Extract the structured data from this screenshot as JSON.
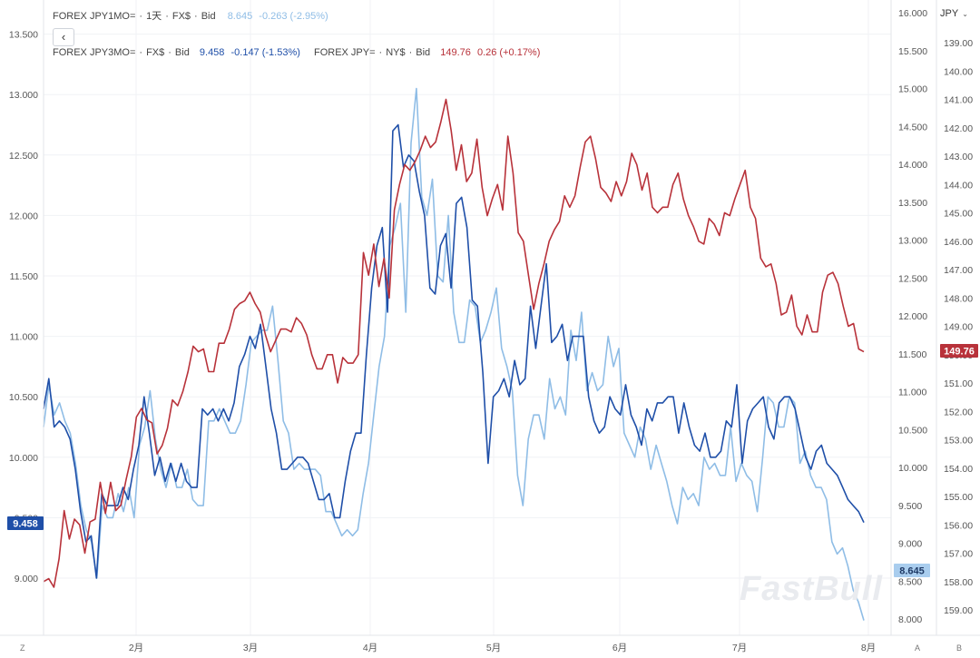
{
  "legend": {
    "line1": {
      "name": "FOREX JPY1MO=",
      "interval": "1天",
      "source": "FX$",
      "side": "Bid",
      "value": "8.645",
      "change": "-0.263 (-2.95%)",
      "color": "#8fbde6"
    },
    "line2": {
      "name": "FOREX JPY3MO=",
      "source": "FX$",
      "side": "Bid",
      "value": "9.458",
      "change": "-0.147 (-1.53%)",
      "color": "#1f4fa8"
    },
    "line3": {
      "name": "FOREX JPY=",
      "source": "NY$",
      "side": "Bid",
      "value": "149.76",
      "change": "0.26 (+0.17%)",
      "color": "#b8323a"
    },
    "dot": "·"
  },
  "currency_select": {
    "value": "JPY"
  },
  "back_button": "‹",
  "watermark": "FastBull",
  "axis_buttons": {
    "left": "Z",
    "auto": "A",
    "right": "B"
  },
  "badges": {
    "left": "9.458",
    "right_top": "8.645",
    "right_price": "149.76"
  },
  "chart_data": {
    "type": "line",
    "x_axis": {
      "months": [
        "2月",
        "3月",
        "4月",
        "5月",
        "6月",
        "7月",
        "8月"
      ]
    },
    "y_left": {
      "ticks": [
        "9.000",
        "9.500",
        "10.000",
        "10.500",
        "11.000",
        "11.500",
        "12.000",
        "12.500",
        "13.000",
        "13.500"
      ],
      "range": [
        8.55,
        13.75
      ]
    },
    "y_mid": {
      "ticks": [
        "8.000",
        "8.500",
        "9.000",
        "9.500",
        "10.000",
        "10.500",
        "11.000",
        "11.500",
        "12.000",
        "12.500",
        "13.000",
        "13.500",
        "14.000",
        "14.500",
        "15.000",
        "15.500",
        "16.000"
      ],
      "range": [
        7.82,
        16.14
      ]
    },
    "y_right": {
      "ticks": [
        "139.00",
        "140.00",
        "141.00",
        "142.00",
        "143.00",
        "144.00",
        "145.00",
        "146.00",
        "147.00",
        "148.00",
        "149.00",
        "150.00",
        "151.00",
        "152.00",
        "153.00",
        "154.00",
        "155.00",
        "156.00",
        "157.00",
        "158.00",
        "159.00"
      ],
      "range": [
        159.9,
        138.1
      ],
      "inverted": true
    },
    "series": [
      {
        "name": "FOREX JPY1MO=",
        "axis": "left",
        "color": "#8fbde6",
        "values": [
          10.25,
          10.6,
          10.35,
          10.45,
          10.3,
          10.2,
          9.95,
          9.6,
          9.4,
          9.3,
          9.0,
          9.6,
          9.5,
          9.5,
          9.7,
          9.55,
          9.75,
          9.5,
          10.1,
          10.25,
          10.55,
          10.15,
          9.9,
          9.75,
          9.95,
          9.75,
          9.75,
          9.9,
          9.65,
          9.6,
          9.6,
          10.3,
          10.3,
          10.4,
          10.3,
          10.2,
          10.2,
          10.3,
          10.6,
          10.95,
          11.0,
          11.05,
          11.05,
          11.25,
          10.8,
          10.3,
          10.2,
          9.9,
          9.95,
          9.9,
          9.9,
          9.9,
          9.85,
          9.55,
          9.55,
          9.45,
          9.35,
          9.4,
          9.35,
          9.4,
          9.7,
          9.95,
          10.35,
          10.75,
          11.0,
          11.75,
          11.9,
          12.1,
          11.2,
          12.6,
          13.05,
          12.15,
          12.0,
          12.3,
          11.5,
          11.45,
          12.0,
          11.2,
          10.95,
          10.95,
          11.3,
          11.25,
          10.95,
          11.05,
          11.2,
          11.4,
          10.9,
          10.75,
          10.55,
          9.85,
          9.6,
          10.15,
          10.35,
          10.35,
          10.15,
          10.65,
          10.4,
          10.5,
          10.35,
          11.05,
          10.8,
          11.2,
          10.55,
          10.7,
          10.55,
          10.6,
          11.0,
          10.75,
          10.9,
          10.2,
          10.1,
          10.0,
          10.25,
          10.15,
          9.9,
          10.1,
          9.95,
          9.8,
          9.6,
          9.45,
          9.75,
          9.65,
          9.7,
          9.6,
          10.0,
          9.9,
          9.95,
          9.85,
          9.85,
          10.25,
          9.8,
          9.95,
          9.85,
          9.8,
          9.55,
          10.0,
          10.5,
          10.45,
          10.25,
          10.25,
          10.5,
          10.45,
          9.95,
          10.05,
          9.85,
          9.75,
          9.75,
          9.65,
          9.3,
          9.2,
          9.25,
          9.1,
          8.9,
          8.8,
          8.65
        ]
      },
      {
        "name": "FOREX JPY3MO=",
        "axis": "left",
        "color": "#1f4fa8",
        "values": [
          10.4,
          10.65,
          10.25,
          10.3,
          10.25,
          10.15,
          9.9,
          9.55,
          9.3,
          9.35,
          9.0,
          9.7,
          9.6,
          9.6,
          9.6,
          9.75,
          9.65,
          9.9,
          10.1,
          10.5,
          10.2,
          9.85,
          10.0,
          9.8,
          9.95,
          9.8,
          9.95,
          9.8,
          9.75,
          9.75,
          10.4,
          10.35,
          10.4,
          10.3,
          10.4,
          10.3,
          10.45,
          10.75,
          10.85,
          11.0,
          10.9,
          11.1,
          10.75,
          10.4,
          10.2,
          9.9,
          9.9,
          9.95,
          10.0,
          10.0,
          9.95,
          9.8,
          9.65,
          9.65,
          9.7,
          9.5,
          9.5,
          9.8,
          10.05,
          10.2,
          10.2,
          10.85,
          11.4,
          11.75,
          11.9,
          11.2,
          12.7,
          12.75,
          12.4,
          12.5,
          12.45,
          12.2,
          12.0,
          11.4,
          11.35,
          11.75,
          11.85,
          11.4,
          12.1,
          12.15,
          11.9,
          11.3,
          11.25,
          10.7,
          9.95,
          10.5,
          10.55,
          10.65,
          10.5,
          10.8,
          10.6,
          10.65,
          11.25,
          10.9,
          11.25,
          11.6,
          10.95,
          11.0,
          11.1,
          10.8,
          11.0,
          11.0,
          11.0,
          10.5,
          10.3,
          10.2,
          10.25,
          10.5,
          10.4,
          10.35,
          10.6,
          10.35,
          10.25,
          10.1,
          10.4,
          10.3,
          10.45,
          10.45,
          10.5,
          10.5,
          10.2,
          10.45,
          10.25,
          10.1,
          10.05,
          10.2,
          10.0,
          10.0,
          10.05,
          10.3,
          10.25,
          10.6,
          9.95,
          10.3,
          10.4,
          10.45,
          10.5,
          10.25,
          10.15,
          10.45,
          10.5,
          10.5,
          10.4,
          10.2,
          10.0,
          9.9,
          10.05,
          10.1,
          9.95,
          9.9,
          9.85,
          9.75,
          9.65,
          9.6,
          9.55,
          9.46
        ]
      },
      {
        "name": "FOREX JPY=",
        "axis": "right",
        "color": "#b8323a",
        "values": [
          158.0,
          157.9,
          158.2,
          157.2,
          155.5,
          156.5,
          155.8,
          156.0,
          157.0,
          155.9,
          155.8,
          154.5,
          155.6,
          154.5,
          155.5,
          155.3,
          154.4,
          153.6,
          152.2,
          151.9,
          152.3,
          152.4,
          153.5,
          153.2,
          152.6,
          151.6,
          151.8,
          151.3,
          150.6,
          149.7,
          149.9,
          149.8,
          150.6,
          150.6,
          149.6,
          149.6,
          149.1,
          148.4,
          148.2,
          148.1,
          147.8,
          148.2,
          148.5,
          149.3,
          149.9,
          149.5,
          149.1,
          149.1,
          149.2,
          148.7,
          148.9,
          149.3,
          150.0,
          150.5,
          150.5,
          150.0,
          150.0,
          151.0,
          150.1,
          150.3,
          150.3,
          150.0,
          146.4,
          147.2,
          146.1,
          147.6,
          146.6,
          148.0,
          144.9,
          144.0,
          143.3,
          143.5,
          143.2,
          142.8,
          142.3,
          142.7,
          142.5,
          141.8,
          141.0,
          142.1,
          143.5,
          142.6,
          143.9,
          143.6,
          142.4,
          144.1,
          145.1,
          144.5,
          144.0,
          144.9,
          142.3,
          143.6,
          145.7,
          146.0,
          147.2,
          148.4,
          147.5,
          146.8,
          146.0,
          145.6,
          145.3,
          144.4,
          144.8,
          144.4,
          143.4,
          142.5,
          142.3,
          143.1,
          144.1,
          144.3,
          144.6,
          143.9,
          144.4,
          143.9,
          142.9,
          143.3,
          144.2,
          143.6,
          144.8,
          145.0,
          144.8,
          144.8,
          144.0,
          143.6,
          144.5,
          145.1,
          145.5,
          146.0,
          146.1,
          145.2,
          145.4,
          145.8,
          145.0,
          145.1,
          144.5,
          144.0,
          143.5,
          144.8,
          145.2,
          146.6,
          146.9,
          146.8,
          147.5,
          148.6,
          148.5,
          147.9,
          149.0,
          149.3,
          148.6,
          149.2,
          149.2,
          147.8,
          147.2,
          147.1,
          147.5,
          148.3,
          149.0,
          148.9,
          149.8,
          149.9
        ]
      }
    ]
  }
}
